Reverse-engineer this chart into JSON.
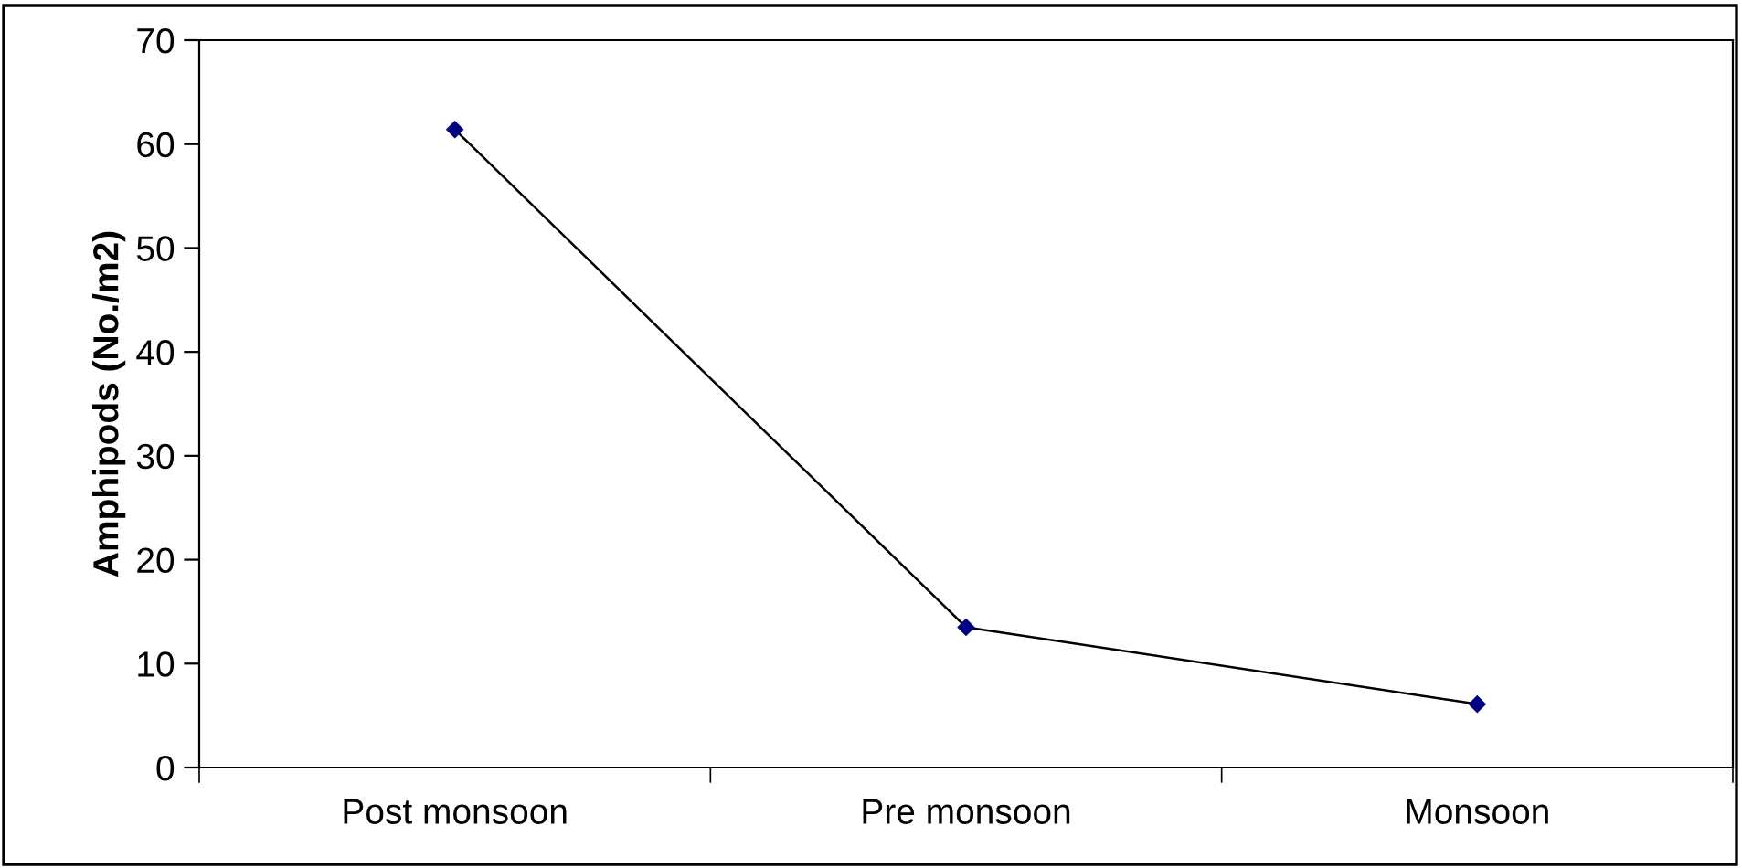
{
  "chart_data": {
    "type": "line",
    "ylabel": "Amphipods (No./m2)",
    "categories": [
      "Post monsoon",
      "Pre monsoon",
      "Monsoon"
    ],
    "series": [
      {
        "color": "#000080",
        "values": [
          61.4,
          13.5,
          6.1
        ]
      }
    ],
    "ylim": [
      0,
      70
    ],
    "yticks": [
      0,
      10,
      20,
      30,
      40,
      50,
      60,
      70
    ],
    "marker": "diamond",
    "line_style": "solid",
    "grid": false,
    "legend": false
  }
}
